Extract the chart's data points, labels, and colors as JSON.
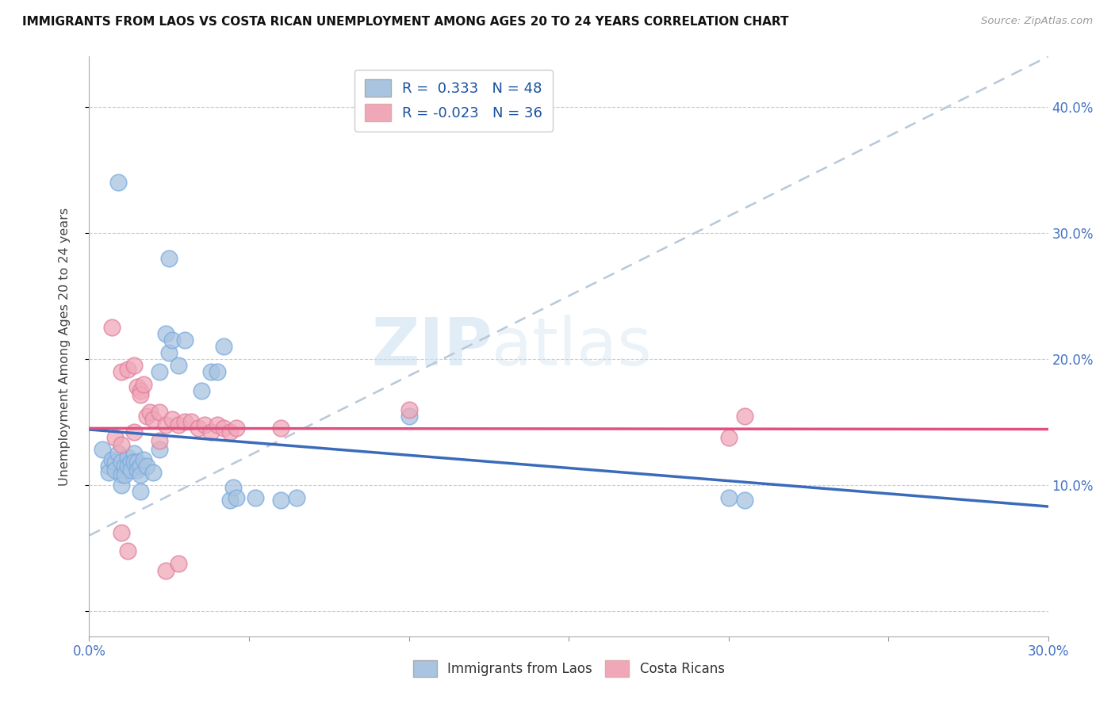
{
  "title": "IMMIGRANTS FROM LAOS VS COSTA RICAN UNEMPLOYMENT AMONG AGES 20 TO 24 YEARS CORRELATION CHART",
  "source_text": "Source: ZipAtlas.com",
  "ylabel_left": "Unemployment Among Ages 20 to 24 years",
  "xlim": [
    0.0,
    0.3
  ],
  "ylim": [
    -0.02,
    0.44
  ],
  "legend_blue_r": "0.333",
  "legend_blue_n": "48",
  "legend_pink_r": "-0.023",
  "legend_pink_n": "36",
  "blue_color": "#a8c4e0",
  "pink_color": "#f0a8b8",
  "blue_line_color": "#3a6bbb",
  "pink_line_color": "#e05080",
  "trend_line_color": "#b8c8d8",
  "watermark_zip": "ZIP",
  "watermark_atlas": "atlas",
  "blue_scatter": [
    [
      0.004,
      0.128
    ],
    [
      0.006,
      0.115
    ],
    [
      0.006,
      0.11
    ],
    [
      0.007,
      0.12
    ],
    [
      0.008,
      0.118
    ],
    [
      0.008,
      0.112
    ],
    [
      0.009,
      0.125
    ],
    [
      0.01,
      0.118
    ],
    [
      0.01,
      0.108
    ],
    [
      0.01,
      0.1
    ],
    [
      0.011,
      0.115
    ],
    [
      0.011,
      0.108
    ],
    [
      0.012,
      0.122
    ],
    [
      0.012,
      0.115
    ],
    [
      0.013,
      0.118
    ],
    [
      0.013,
      0.112
    ],
    [
      0.014,
      0.125
    ],
    [
      0.014,
      0.118
    ],
    [
      0.015,
      0.118
    ],
    [
      0.015,
      0.112
    ],
    [
      0.016,
      0.115
    ],
    [
      0.016,
      0.108
    ],
    [
      0.016,
      0.095
    ],
    [
      0.017,
      0.12
    ],
    [
      0.018,
      0.115
    ],
    [
      0.02,
      0.11
    ],
    [
      0.022,
      0.128
    ],
    [
      0.022,
      0.19
    ],
    [
      0.024,
      0.22
    ],
    [
      0.025,
      0.205
    ],
    [
      0.026,
      0.215
    ],
    [
      0.028,
      0.195
    ],
    [
      0.03,
      0.215
    ],
    [
      0.035,
      0.175
    ],
    [
      0.038,
      0.19
    ],
    [
      0.04,
      0.19
    ],
    [
      0.042,
      0.21
    ],
    [
      0.044,
      0.088
    ],
    [
      0.045,
      0.098
    ],
    [
      0.046,
      0.09
    ],
    [
      0.052,
      0.09
    ],
    [
      0.06,
      0.088
    ],
    [
      0.065,
      0.09
    ],
    [
      0.009,
      0.34
    ],
    [
      0.025,
      0.28
    ],
    [
      0.1,
      0.155
    ],
    [
      0.2,
      0.09
    ],
    [
      0.205,
      0.088
    ]
  ],
  "pink_scatter": [
    [
      0.007,
      0.225
    ],
    [
      0.01,
      0.19
    ],
    [
      0.012,
      0.192
    ],
    [
      0.014,
      0.195
    ],
    [
      0.015,
      0.178
    ],
    [
      0.016,
      0.175
    ],
    [
      0.016,
      0.172
    ],
    [
      0.017,
      0.18
    ],
    [
      0.018,
      0.155
    ],
    [
      0.019,
      0.158
    ],
    [
      0.02,
      0.152
    ],
    [
      0.022,
      0.158
    ],
    [
      0.022,
      0.135
    ],
    [
      0.024,
      0.148
    ],
    [
      0.026,
      0.152
    ],
    [
      0.028,
      0.148
    ],
    [
      0.03,
      0.15
    ],
    [
      0.032,
      0.15
    ],
    [
      0.034,
      0.145
    ],
    [
      0.036,
      0.148
    ],
    [
      0.038,
      0.142
    ],
    [
      0.04,
      0.148
    ],
    [
      0.042,
      0.145
    ],
    [
      0.044,
      0.142
    ],
    [
      0.046,
      0.145
    ],
    [
      0.06,
      0.145
    ],
    [
      0.1,
      0.16
    ],
    [
      0.012,
      0.048
    ],
    [
      0.024,
      0.032
    ],
    [
      0.01,
      0.062
    ],
    [
      0.014,
      0.142
    ],
    [
      0.008,
      0.138
    ],
    [
      0.01,
      0.132
    ],
    [
      0.028,
      0.038
    ],
    [
      0.2,
      0.138
    ],
    [
      0.205,
      0.155
    ]
  ],
  "dashed_line": [
    [
      0.0,
      0.06
    ],
    [
      0.3,
      0.44
    ]
  ]
}
